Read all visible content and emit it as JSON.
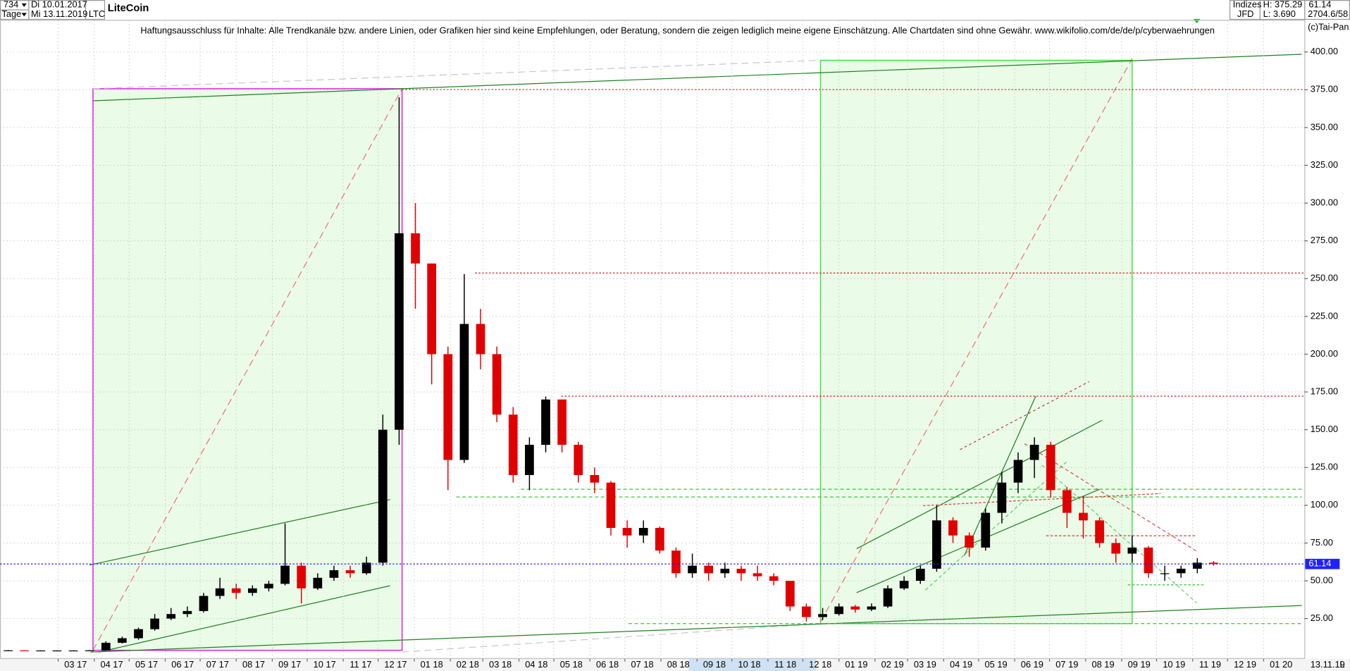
{
  "header": {
    "count": "734",
    "start_date": "Di 10.01.2017",
    "period": "Tage",
    "end_date": "Mi 13.11.2019",
    "symbol": "LTC",
    "market": "Indizes",
    "broker": "JFD",
    "high": "H: 375.29",
    "low": "L: 3.690",
    "quote": "2704.6/58",
    "copyright": "(c)Tai-Pan",
    "disclaimer": "Haftungsausschluss für Inhalte: Alle Trendkanäle bzw. andere Linien, oder Grafiken hier sind keine Empfehlungen, oder Beratung, sondern die zeigen lediglich meine eigene Einschätzung. Alle Chartdaten sind ohne Gewähr.  www.wikifolio.com/de/de/p/cyberwaehrungen",
    "last_date": "13.11.19",
    "mode": "L"
  },
  "chart_data": {
    "type": "candlestick",
    "title": "LiteCoin",
    "up_color": "#000000",
    "down_color": "#e00000",
    "last_value": 61.14,
    "last_color": "#2020ff",
    "grid": true,
    "x": [
      "2017-01-10",
      "2017-01-24",
      "2017-02-07",
      "2017-02-21",
      "2017-03-07",
      "2017-03-21",
      "2017-04-04",
      "2017-04-18",
      "2017-05-02",
      "2017-05-16",
      "2017-05-30",
      "2017-06-13",
      "2017-06-27",
      "2017-07-11",
      "2017-07-25",
      "2017-08-08",
      "2017-08-22",
      "2017-09-05",
      "2017-09-19",
      "2017-10-03",
      "2017-10-17",
      "2017-10-31",
      "2017-11-14",
      "2017-11-28",
      "2017-12-12",
      "2017-12-26",
      "2018-01-09",
      "2018-01-23",
      "2018-02-06",
      "2018-02-20",
      "2018-03-06",
      "2018-03-20",
      "2018-04-03",
      "2018-04-17",
      "2018-05-01",
      "2018-05-15",
      "2018-05-29",
      "2018-06-12",
      "2018-06-26",
      "2018-07-10",
      "2018-07-24",
      "2018-08-07",
      "2018-08-21",
      "2018-09-04",
      "2018-09-18",
      "2018-10-02",
      "2018-10-16",
      "2018-10-30",
      "2018-11-13",
      "2018-11-27",
      "2018-12-11",
      "2018-12-25",
      "2019-01-08",
      "2019-01-22",
      "2019-02-05",
      "2019-02-19",
      "2019-03-05",
      "2019-03-19",
      "2019-04-02",
      "2019-04-16",
      "2019-04-30",
      "2019-05-14",
      "2019-05-28",
      "2019-06-11",
      "2019-06-25",
      "2019-07-09",
      "2019-07-23",
      "2019-08-06",
      "2019-08-20",
      "2019-09-03",
      "2019-09-17",
      "2019-10-01",
      "2019-10-15",
      "2019-10-29",
      "2019-11-12"
    ],
    "open": [
      3.9,
      4.0,
      3.9,
      3.9,
      3.9,
      3.9,
      4.0,
      9,
      12,
      18,
      25,
      28,
      30,
      40,
      45,
      42,
      45,
      48,
      60,
      45,
      52,
      57,
      55,
      62,
      150,
      280,
      260,
      200,
      130,
      220,
      200,
      160,
      120,
      140,
      170,
      140,
      120,
      115,
      85,
      80,
      85,
      70,
      55,
      60,
      55,
      58,
      55,
      53,
      50,
      33,
      26,
      28,
      33,
      31,
      33,
      45,
      50,
      58,
      90,
      80,
      72,
      95,
      115,
      130,
      140,
      110,
      95,
      90,
      75,
      68,
      72,
      55,
      55,
      58,
      62
    ],
    "high": [
      4.2,
      4.1,
      4.0,
      4.0,
      4.0,
      4.2,
      10,
      13,
      19,
      28,
      32,
      33,
      42,
      52,
      48,
      47,
      50,
      88,
      62,
      55,
      60,
      60,
      66,
      160,
      370,
      300,
      260,
      205,
      253,
      230,
      205,
      165,
      145,
      172,
      170,
      142,
      125,
      116,
      90,
      90,
      86,
      72,
      68,
      62,
      62,
      60,
      60,
      55,
      50,
      35,
      32,
      35,
      34,
      35,
      47,
      53,
      60,
      100,
      92,
      82,
      98,
      122,
      135,
      145,
      142,
      112,
      106,
      92,
      78,
      80,
      73,
      60,
      60,
      65,
      63
    ],
    "low": [
      3.7,
      3.7,
      3.7,
      3.7,
      3.7,
      3.8,
      3.9,
      8.5,
      11,
      17,
      24,
      26,
      29,
      38,
      38,
      40,
      43,
      47,
      35,
      44,
      50,
      52,
      54,
      60,
      140,
      230,
      180,
      110,
      128,
      190,
      155,
      115,
      110,
      135,
      135,
      115,
      108,
      80,
      72,
      75,
      68,
      52,
      52,
      50,
      52,
      50,
      50,
      47,
      30,
      23,
      24,
      27,
      29,
      30,
      32,
      44,
      48,
      56,
      75,
      66,
      70,
      88,
      108,
      118,
      105,
      85,
      78,
      72,
      62,
      62,
      52,
      50,
      52,
      55,
      60
    ],
    "close": [
      4.0,
      3.9,
      3.9,
      3.9,
      3.9,
      4.0,
      9,
      12,
      18,
      25,
      28,
      30,
      40,
      45,
      42,
      45,
      48,
      60,
      45,
      52,
      57,
      55,
      62,
      150,
      280,
      260,
      200,
      130,
      220,
      200,
      160,
      120,
      140,
      170,
      140,
      120,
      115,
      85,
      80,
      85,
      70,
      55,
      60,
      55,
      58,
      55,
      53,
      50,
      33,
      26,
      28,
      33,
      31,
      33,
      45,
      50,
      58,
      90,
      80,
      72,
      95,
      115,
      130,
      140,
      110,
      95,
      90,
      75,
      68,
      72,
      55,
      55,
      58,
      62,
      61.14
    ],
    "xlim": [
      "2017-01-10",
      "2020-02-05"
    ],
    "xticks": [
      {
        "value": "2017-03",
        "label": "03 17"
      },
      {
        "value": "2017-04",
        "label": "04 17"
      },
      {
        "value": "2017-05",
        "label": "05 17"
      },
      {
        "value": "2017-06",
        "label": "06 17"
      },
      {
        "value": "2017-07",
        "label": "07 17"
      },
      {
        "value": "2017-08",
        "label": "08 17"
      },
      {
        "value": "2017-09",
        "label": "09 17"
      },
      {
        "value": "2017-10",
        "label": "10 17"
      },
      {
        "value": "2017-11",
        "label": "11 17"
      },
      {
        "value": "2017-12",
        "label": "12 17"
      },
      {
        "value": "2018-01",
        "label": "01 18"
      },
      {
        "value": "2018-02",
        "label": "02 18"
      },
      {
        "value": "2018-03",
        "label": "03 18"
      },
      {
        "value": "2018-04",
        "label": "04 18"
      },
      {
        "value": "2018-05",
        "label": "05 18"
      },
      {
        "value": "2018-06",
        "label": "06 18"
      },
      {
        "value": "2018-07",
        "label": "07 18"
      },
      {
        "value": "2018-08",
        "label": "08 18"
      },
      {
        "value": "2018-09",
        "label": "09 18"
      },
      {
        "value": "2018-10",
        "label": "10 18"
      },
      {
        "value": "2018-11",
        "label": "11 18"
      },
      {
        "value": "2018-12",
        "label": "12 18"
      },
      {
        "value": "2019-01",
        "label": "01 19"
      },
      {
        "value": "2019-02",
        "label": "02 19"
      },
      {
        "value": "2019-03",
        "label": "03 19"
      },
      {
        "value": "2019-04",
        "label": "04 19"
      },
      {
        "value": "2019-05",
        "label": "05 19"
      },
      {
        "value": "2019-06",
        "label": "06 19"
      },
      {
        "value": "2019-07",
        "label": "07 19"
      },
      {
        "value": "2019-08",
        "label": "08 19"
      },
      {
        "value": "2019-09",
        "label": "09 19"
      },
      {
        "value": "2019-10",
        "label": "10 19"
      },
      {
        "value": "2019-11",
        "label": "11 19"
      },
      {
        "value": "2019-12",
        "label": "12 19"
      },
      {
        "value": "2020-01",
        "label": "01 20"
      }
    ],
    "ylim": [
      0,
      423
    ],
    "yticks": [
      {
        "value": 25,
        "label": "25.00"
      },
      {
        "value": 50,
        "label": "50.00"
      },
      {
        "value": 75,
        "label": "75.00"
      },
      {
        "value": 100,
        "label": "100.00"
      },
      {
        "value": 125,
        "label": "125.00"
      },
      {
        "value": 150,
        "label": "150.00"
      },
      {
        "value": 175,
        "label": "175.00"
      },
      {
        "value": 200,
        "label": "200.00"
      },
      {
        "value": 225,
        "label": "225.00"
      },
      {
        "value": 250,
        "label": "250.00"
      },
      {
        "value": 275,
        "label": "275.00"
      },
      {
        "value": 300,
        "label": "300.00"
      },
      {
        "value": 325,
        "label": "325.00"
      },
      {
        "value": 350,
        "label": "350.00"
      },
      {
        "value": 375,
        "label": "375.00"
      },
      {
        "value": 400,
        "label": "400.00"
      }
    ]
  }
}
